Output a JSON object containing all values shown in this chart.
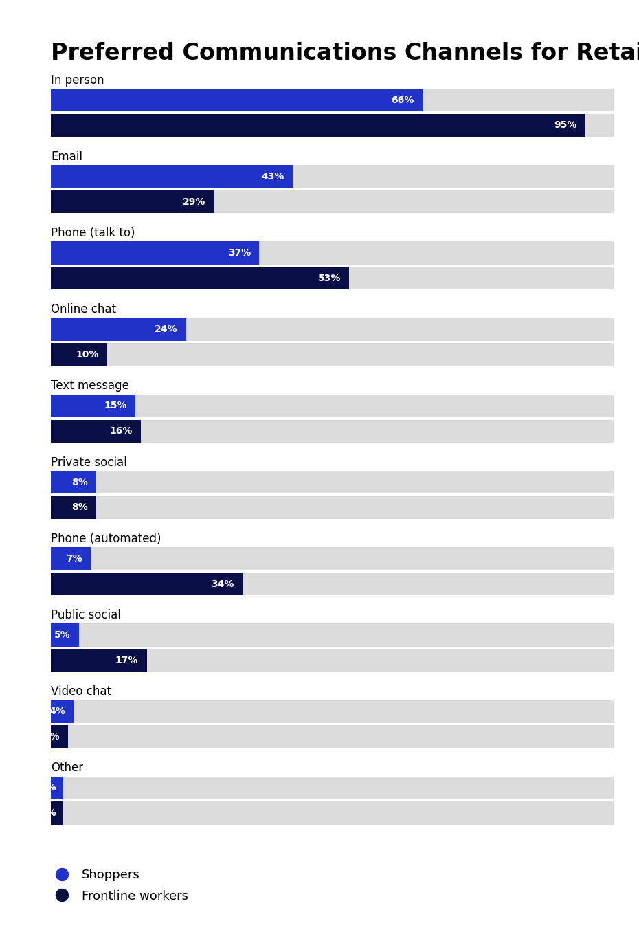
{
  "title": "Preferred Communications Channels for Retail",
  "categories": [
    "In person",
    "Email",
    "Phone (talk to)",
    "Online chat",
    "Text message",
    "Private social",
    "Phone (automated)",
    "Public social",
    "Video chat",
    "Other"
  ],
  "shoppers": [
    66,
    43,
    37,
    24,
    15,
    8,
    7,
    5,
    4,
    2
  ],
  "frontline": [
    95,
    29,
    53,
    10,
    16,
    8,
    34,
    17,
    3,
    2
  ],
  "shopper_color": "#2132C8",
  "frontline_color": "#0A1045",
  "bg_color": "#DCDCDC",
  "max_val": 100,
  "title_fontsize": 24,
  "category_fontsize": 12,
  "bar_label_fontsize": 10,
  "legend_fontsize": 13,
  "fig_bg": "#FFFFFF"
}
